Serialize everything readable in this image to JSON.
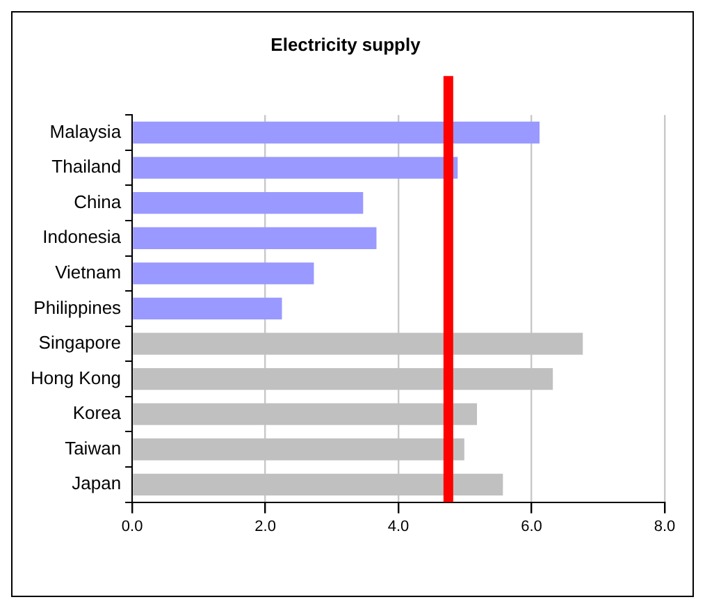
{
  "chart_data": {
    "type": "bar",
    "orientation": "horizontal",
    "title": "Electricity supply",
    "categories": [
      "Malaysia",
      "Thailand",
      "China",
      "Indonesia",
      "Vietnam",
      "Philippines",
      "Singapore",
      "Hong Kong",
      "Korea",
      "Taiwan",
      "Japan"
    ],
    "values": [
      6.12,
      4.89,
      3.47,
      3.67,
      2.73,
      2.25,
      6.77,
      6.32,
      5.18,
      4.99,
      5.57
    ],
    "colors": [
      "#9999ff",
      "#9999ff",
      "#9999ff",
      "#9999ff",
      "#9999ff",
      "#9999ff",
      "#c0c0c0",
      "#c0c0c0",
      "#c0c0c0",
      "#c0c0c0",
      "#c0c0c0"
    ],
    "xlim": [
      0,
      8
    ],
    "xticks": [
      {
        "value": 0,
        "label": "0.0"
      },
      {
        "value": 2,
        "label": "2.0"
      },
      {
        "value": 4,
        "label": "4.0"
      },
      {
        "value": 6,
        "label": "6.0"
      },
      {
        "value": 8,
        "label": "8.0"
      }
    ],
    "grid": "x",
    "ref_lines": [
      {
        "axis": "x",
        "value": 4.75,
        "color": "#ff0000"
      }
    ]
  }
}
